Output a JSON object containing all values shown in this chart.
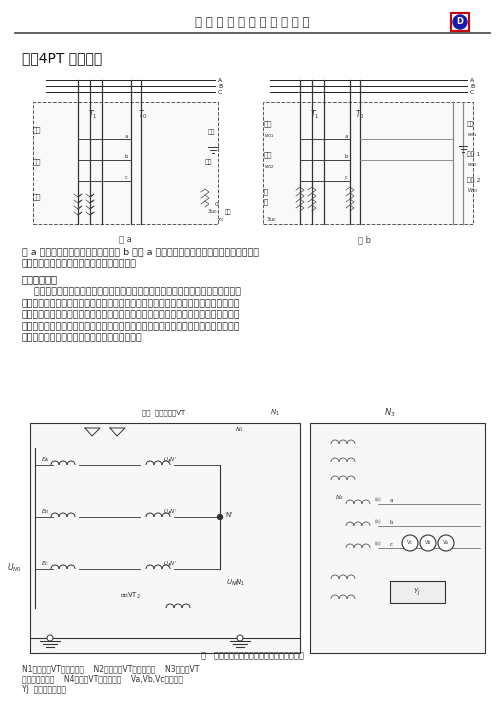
{
  "page_width": 5.04,
  "page_height": 7.13,
  "dpi": 100,
  "bg_color": "#ffffff",
  "header_text": "厦 门 大 一 互 科 技 有 限 公 司",
  "section_title": "一、4PT 消谐原理",
  "fig_a_label": "图 a",
  "fig_b_label": "图 b",
  "body_text_1": "图 a 为抗谐振电压互感器接线图，图 b 是图 a 的优化，具有抗谐振阻振荡功能，比优化",
  "body_text_2": "前相电压测量和零序电压测量都能够很准确。",
  "subsection_bold": "抗谐振原理：",
  "body_para": [
    "    中性点绝缘系统中电磁式电压互感器的铁磁谐振发生的根本原因在于互感器铁心在",
    "某些激发条件下饱和而使其感抗变小而与线路对地电容的容抗相等所致。如果互感器一",
    "次绕组中性点不接地或经高阻抗接地，则各相绕组跨接在电源的相间电压上，不在与接",
    "地电容相并联，因而不会发生中性点位移，也就不发生谐振。因此采用了互感器中点经",
    "单相电压互感器接地的接线方式，如下图所示。"
  ],
  "fig2_caption": "图   三相中性点经单相电压互感器接地接线图",
  "fig2_notes": [
    "N1－三相组VT的一次绕组    N2－三相组VT的二次绕组    N3－三相VT",
    "的剩余电压绕组    N4－单相VT的一次绕组    Va,Vb,Vc－电压表",
    "YJ  接地控制继电器"
  ]
}
